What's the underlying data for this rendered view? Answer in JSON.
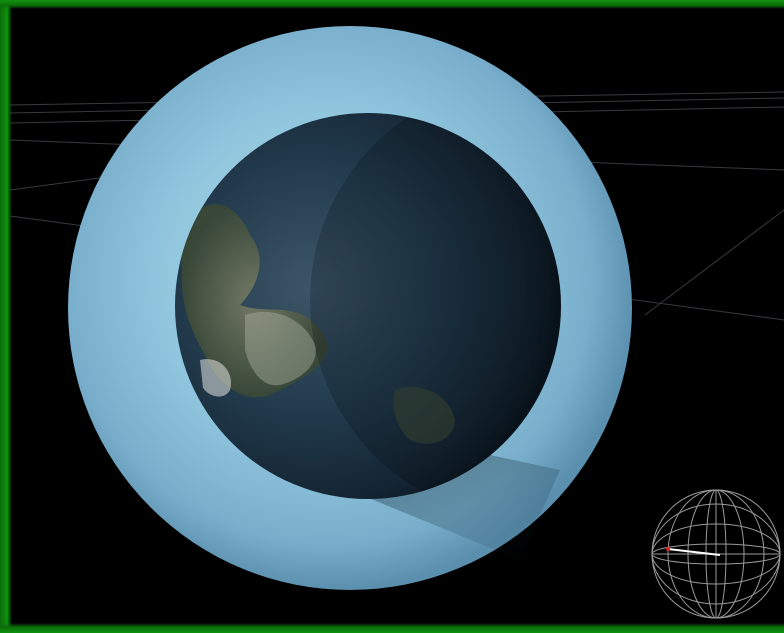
{
  "viewer": {
    "frame_color": "#0e930e",
    "background_color": "#000000"
  },
  "scene": {
    "atmosphere_color": "#8ec6e0",
    "planet_ocean_color": "#1c3648",
    "planet_land_color": "#4f5e40",
    "orbit_line_color": "#9aa8b4"
  },
  "navigation_widget": {
    "icon": "wireframe-globe-icon",
    "grid_color": "#9a9a9a",
    "pointer_color": "#ffffff",
    "pointer_origin_color": "#e02020"
  }
}
